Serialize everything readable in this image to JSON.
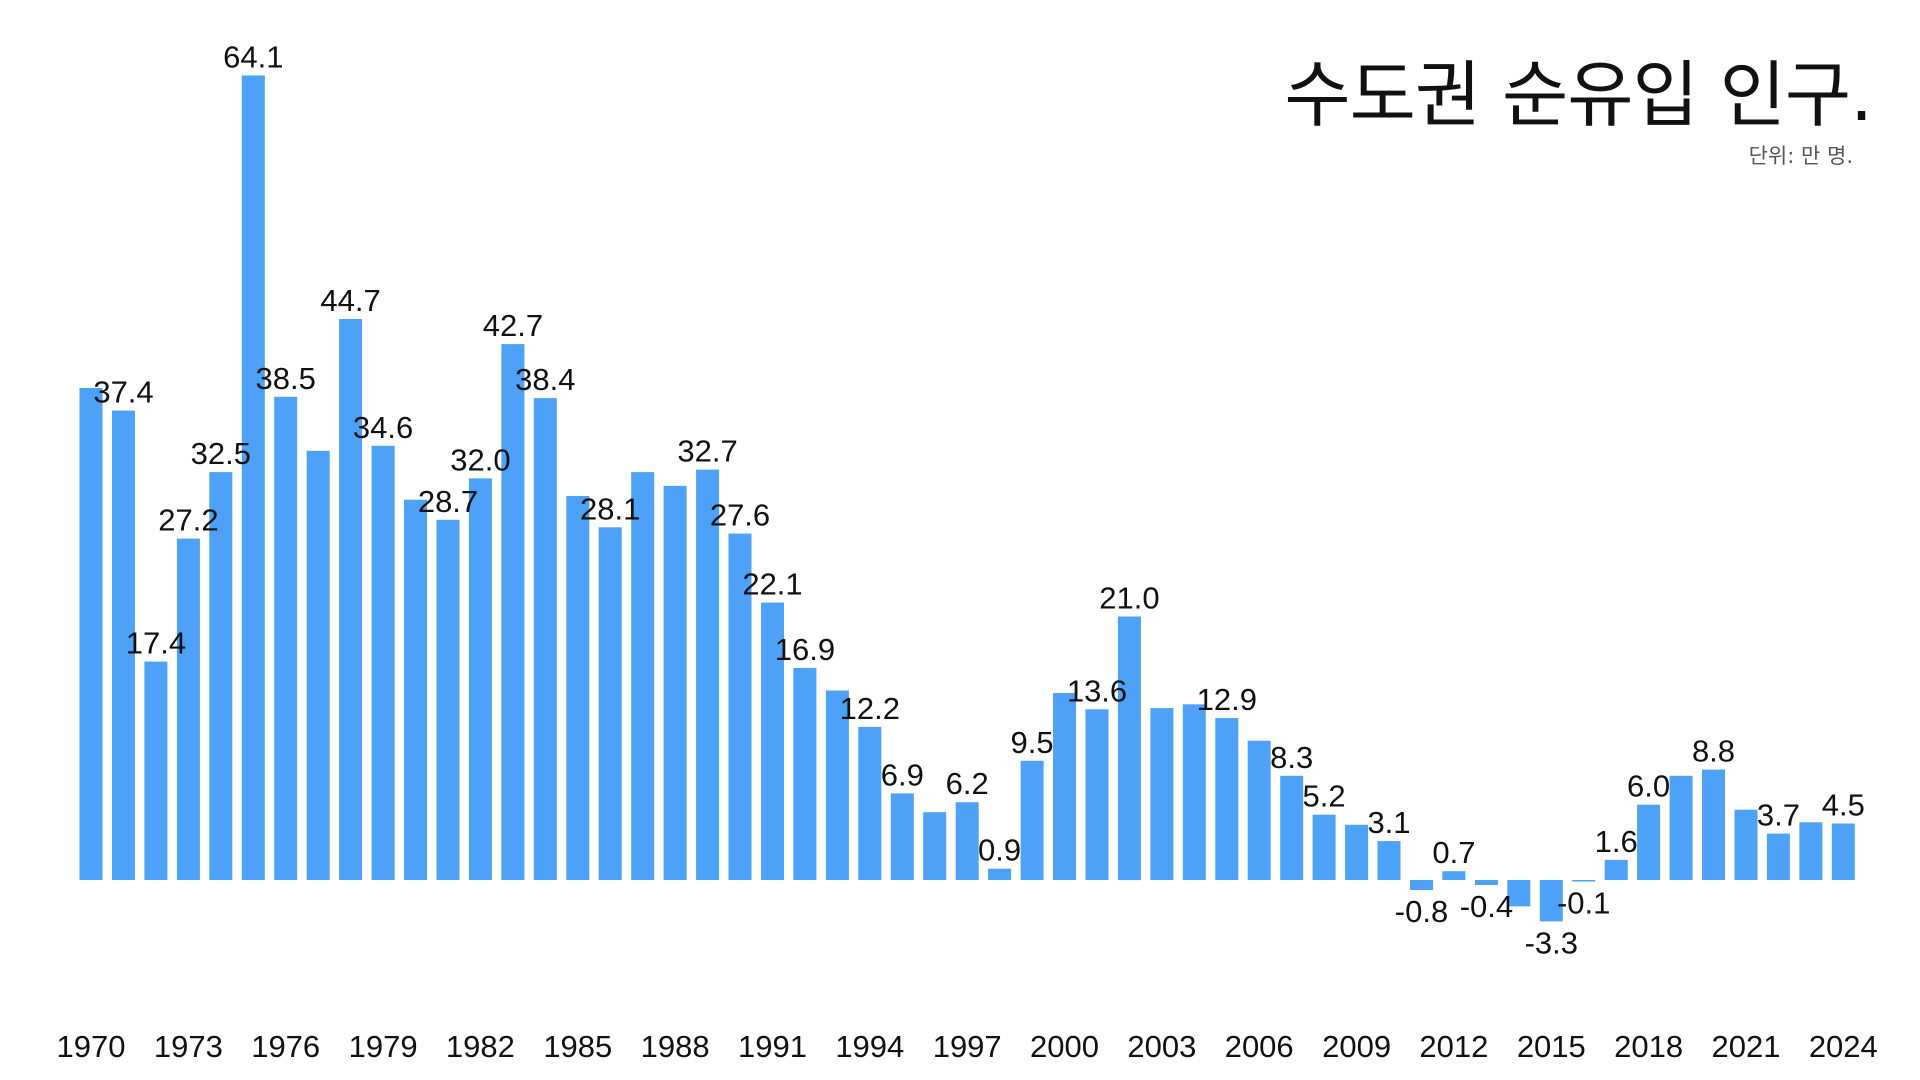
{
  "chart_data": {
    "type": "bar",
    "title": "수도권 순유입 인구.",
    "unit_label": "단위: 만 명.",
    "bar_color": "#4da1f7",
    "grid": false,
    "x": [
      1970,
      1971,
      1972,
      1973,
      1974,
      1975,
      1976,
      1977,
      1978,
      1979,
      1980,
      1981,
      1982,
      1983,
      1984,
      1985,
      1986,
      1987,
      1988,
      1989,
      1990,
      1991,
      1992,
      1993,
      1994,
      1995,
      1996,
      1997,
      1998,
      1999,
      2000,
      2001,
      2002,
      2003,
      2004,
      2005,
      2006,
      2007,
      2008,
      2009,
      2010,
      2011,
      2012,
      2013,
      2014,
      2015,
      2016,
      2017,
      2018,
      2019,
      2020,
      2021,
      2022,
      2023,
      2024
    ],
    "values": [
      39.2,
      37.4,
      17.4,
      27.2,
      32.5,
      64.1,
      38.5,
      34.2,
      44.7,
      34.6,
      30.3,
      28.7,
      32.0,
      42.7,
      38.4,
      30.6,
      28.1,
      32.5,
      31.4,
      32.7,
      27.6,
      22.1,
      16.9,
      15.1,
      12.2,
      6.9,
      5.4,
      6.2,
      0.9,
      9.5,
      14.9,
      13.6,
      21.0,
      13.7,
      14.0,
      12.9,
      11.1,
      8.3,
      5.2,
      4.4,
      3.1,
      -0.8,
      0.7,
      -0.4,
      -2.1,
      -3.3,
      -0.1,
      1.6,
      6.0,
      8.3,
      8.8,
      5.6,
      3.7,
      4.6,
      4.5
    ],
    "value_labels": [
      {
        "year": 1971,
        "text": "37.4"
      },
      {
        "year": 1972,
        "text": "17.4"
      },
      {
        "year": 1973,
        "text": "27.2"
      },
      {
        "year": 1974,
        "text": "32.5"
      },
      {
        "year": 1975,
        "text": "64.1"
      },
      {
        "year": 1976,
        "text": "38.5"
      },
      {
        "year": 1978,
        "text": "44.7"
      },
      {
        "year": 1979,
        "text": "34.6"
      },
      {
        "year": 1981,
        "text": "28.7"
      },
      {
        "year": 1982,
        "text": "32.0"
      },
      {
        "year": 1983,
        "text": "42.7"
      },
      {
        "year": 1984,
        "text": "38.4"
      },
      {
        "year": 1986,
        "text": "28.1"
      },
      {
        "year": 1989,
        "text": "32.7"
      },
      {
        "year": 1990,
        "text": "27.6"
      },
      {
        "year": 1991,
        "text": "22.1"
      },
      {
        "year": 1992,
        "text": "16.9"
      },
      {
        "year": 1994,
        "text": "12.2"
      },
      {
        "year": 1995,
        "text": "6.9"
      },
      {
        "year": 1997,
        "text": "6.2"
      },
      {
        "year": 1998,
        "text": "0.9"
      },
      {
        "year": 1999,
        "text": "9.5"
      },
      {
        "year": 2001,
        "text": "13.6"
      },
      {
        "year": 2002,
        "text": "21.0"
      },
      {
        "year": 2005,
        "text": "12.9"
      },
      {
        "year": 2007,
        "text": "8.3"
      },
      {
        "year": 2008,
        "text": "5.2"
      },
      {
        "year": 2010,
        "text": "3.1"
      },
      {
        "year": 2011,
        "text": "-0.8"
      },
      {
        "year": 2012,
        "text": "0.7"
      },
      {
        "year": 2013,
        "text": "-0.4"
      },
      {
        "year": 2015,
        "text": "-3.3"
      },
      {
        "year": 2016,
        "text": "-0.1"
      },
      {
        "year": 2017,
        "text": "1.6"
      },
      {
        "year": 2018,
        "text": "6.0"
      },
      {
        "year": 2020,
        "text": "8.8"
      },
      {
        "year": 2022,
        "text": "3.7"
      },
      {
        "year": 2024,
        "text": "4.5"
      }
    ],
    "x_ticks": [
      "1970",
      "1973",
      "1976",
      "1979",
      "1982",
      "1985",
      "1988",
      "1991",
      "1994",
      "1997",
      "2000",
      "2003",
      "2006",
      "2009",
      "2012",
      "2015",
      "2018",
      "2021",
      "2024"
    ],
    "ylim": [
      -6,
      65
    ],
    "xlabel": "",
    "ylabel": ""
  }
}
